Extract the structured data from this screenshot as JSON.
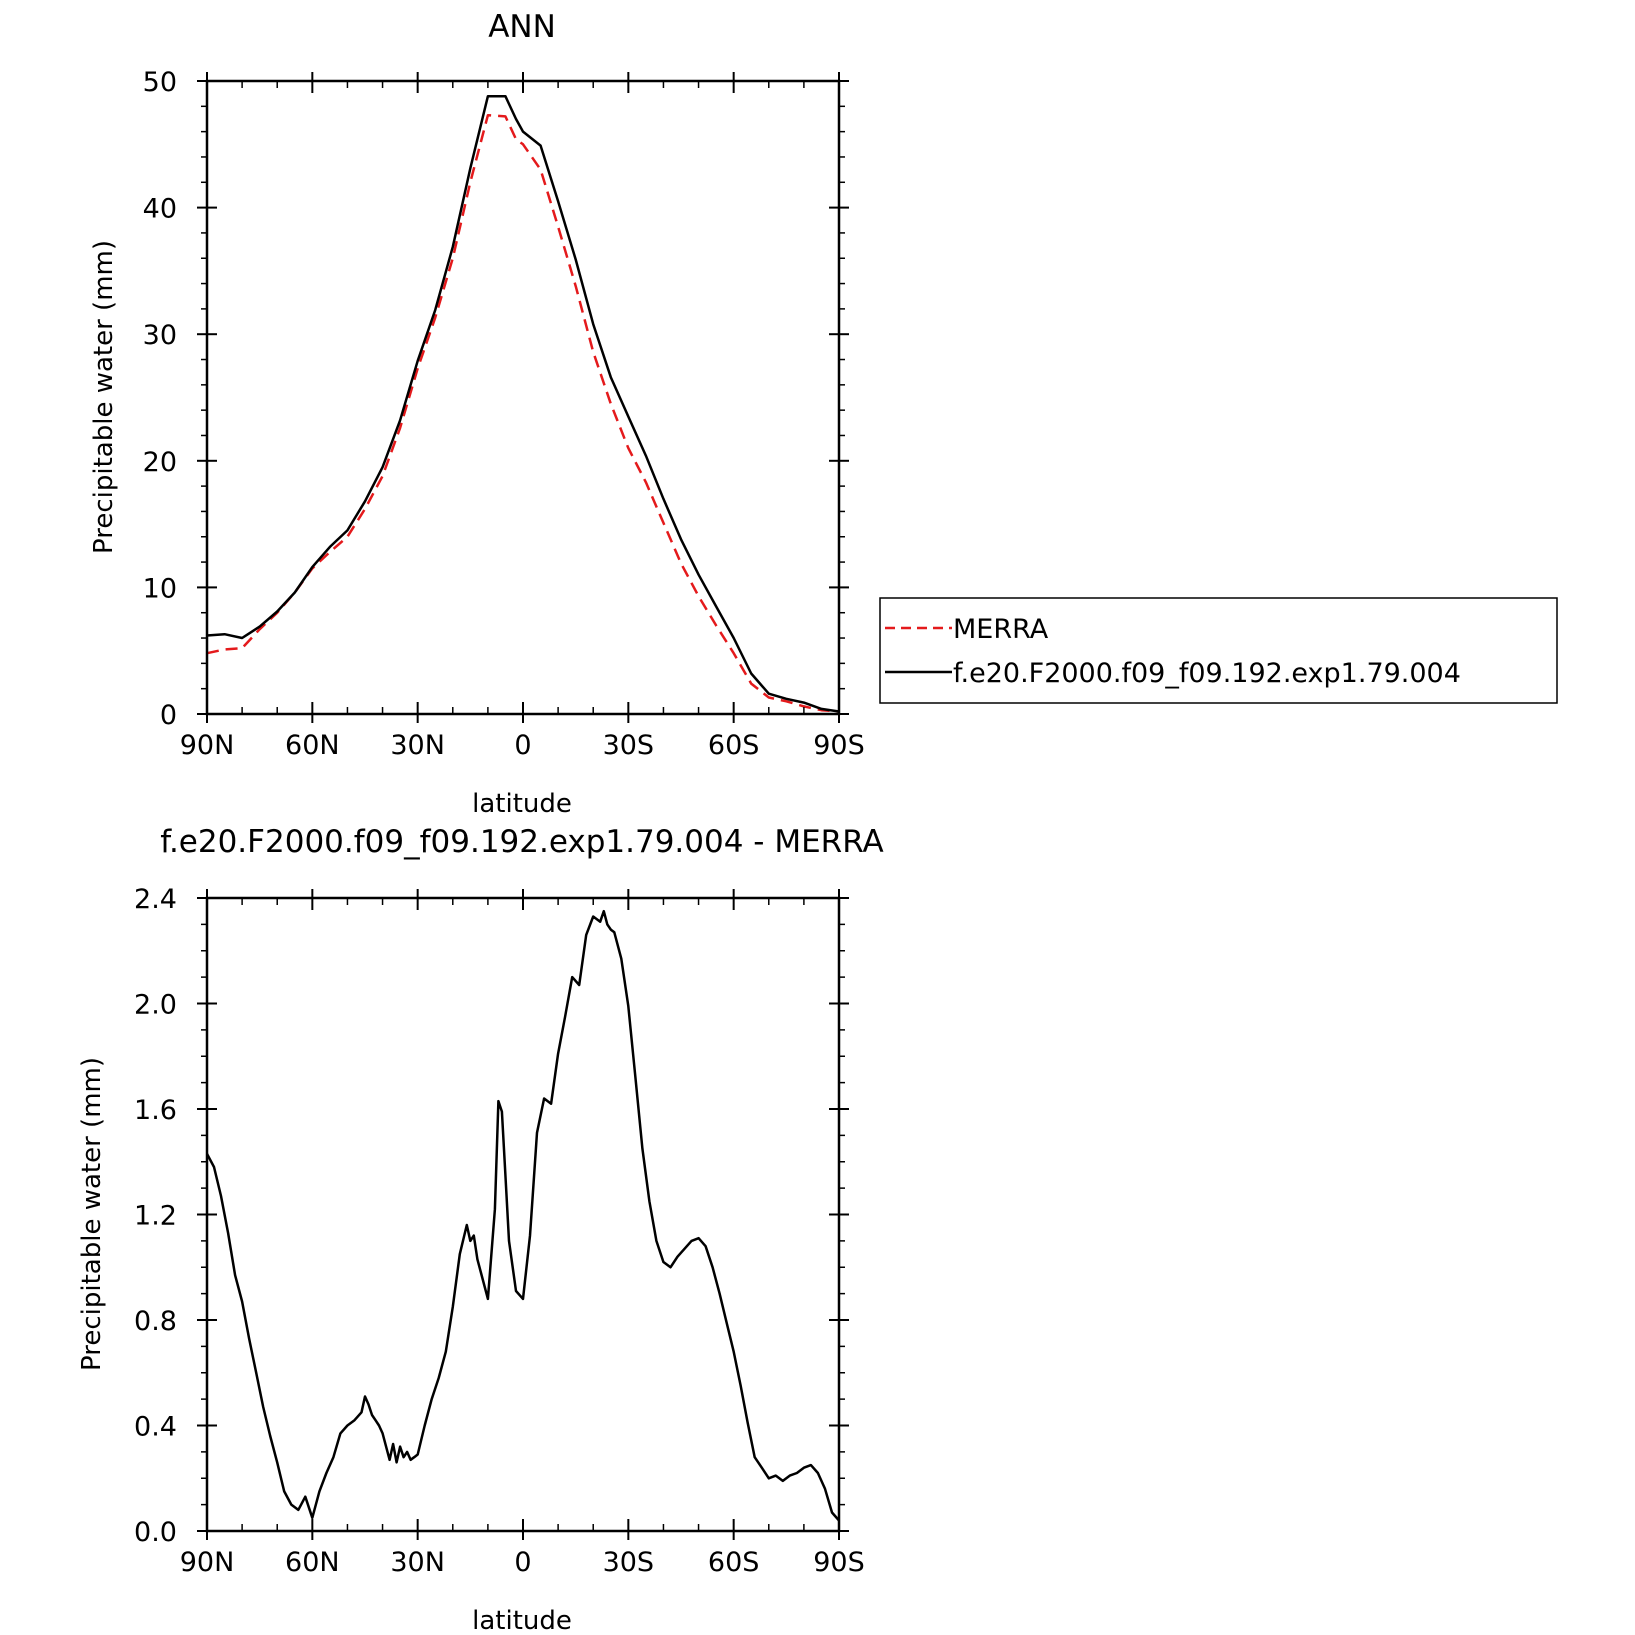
{
  "chart_data": [
    {
      "type": "line",
      "title": "ANN",
      "xlabel": "latitude",
      "ylabel": "Precipitable water (mm)",
      "xlim": [
        90,
        -90
      ],
      "ylim": [
        0,
        50
      ],
      "x_tick_values": [
        90,
        60,
        30,
        0,
        -30,
        -60,
        -90
      ],
      "x_tick_labels": [
        "90N",
        "60N",
        "30N",
        "0",
        "30S",
        "60S",
        "90S"
      ],
      "y_tick_values": [
        0,
        10,
        20,
        30,
        40,
        50
      ],
      "y_tick_labels": [
        "0",
        "10",
        "20",
        "30",
        "40",
        "50"
      ],
      "grid": false,
      "legend_placement": "right",
      "series": [
        {
          "name": "MERRA",
          "color": "#e41a1c",
          "dash": "dashed",
          "x": [
            90,
            85,
            80,
            75,
            70,
            65,
            60,
            55,
            50,
            45,
            40,
            35,
            30,
            25,
            20,
            15,
            10,
            5,
            2,
            0,
            -5,
            -10,
            -15,
            -20,
            -25,
            -30,
            -35,
            -40,
            -45,
            -50,
            -55,
            -60,
            -65,
            -70,
            -75,
            -80,
            -85,
            -90
          ],
          "y": [
            4.8,
            5.1,
            5.2,
            6.7,
            8.0,
            9.6,
            11.5,
            12.8,
            14.0,
            16.2,
            18.8,
            22.6,
            27.3,
            31.3,
            36.0,
            42.0,
            47.3,
            47.2,
            45.4,
            45.0,
            43.0,
            38.5,
            33.8,
            28.6,
            24.5,
            21.0,
            18.3,
            15.1,
            11.9,
            9.3,
            7.0,
            4.8,
            2.4,
            1.3,
            1.0,
            0.6,
            0.3,
            0.2
          ]
        },
        {
          "name": "f.e20.F2000.f09_f09.192.exp1.79.004",
          "color": "#000000",
          "dash": "solid",
          "x": [
            90,
            85,
            80,
            75,
            70,
            65,
            60,
            55,
            50,
            45,
            40,
            35,
            30,
            25,
            20,
            15,
            10,
            5,
            2,
            0,
            -5,
            -10,
            -15,
            -20,
            -25,
            -30,
            -35,
            -40,
            -45,
            -50,
            -55,
            -60,
            -65,
            -70,
            -75,
            -80,
            -85,
            -90
          ],
          "y": [
            6.2,
            6.3,
            6.0,
            6.9,
            8.1,
            9.6,
            11.6,
            13.2,
            14.5,
            16.8,
            19.5,
            23.2,
            27.9,
            31.9,
            36.9,
            43.1,
            48.8,
            48.8,
            47.0,
            46.0,
            44.9,
            40.5,
            35.9,
            30.8,
            26.6,
            23.5,
            20.4,
            17.0,
            13.8,
            11.0,
            8.5,
            6.0,
            3.2,
            1.6,
            1.2,
            0.9,
            0.4,
            0.2
          ]
        }
      ]
    },
    {
      "type": "line",
      "title": "f.e20.F2000.f09_f09.192.exp1.79.004 - MERRA",
      "xlabel": "latitude",
      "ylabel": "Precipitable water (mm)",
      "xlim": [
        90,
        -90
      ],
      "ylim": [
        0,
        2.4
      ],
      "x_tick_values": [
        90,
        60,
        30,
        0,
        -30,
        -60,
        -90
      ],
      "x_tick_labels": [
        "90N",
        "60N",
        "30N",
        "0",
        "30S",
        "60S",
        "90S"
      ],
      "y_tick_values": [
        0,
        0.4,
        0.8,
        1.2,
        1.6,
        2.0,
        2.4
      ],
      "y_tick_labels": [
        "0.0",
        "0.4",
        "0.8",
        "1.2",
        "1.6",
        "2.0",
        "2.4"
      ],
      "grid": false,
      "series": [
        {
          "color": "#000000",
          "x": [
            90,
            88,
            86,
            84,
            82,
            80,
            78,
            76,
            74,
            72,
            70,
            68,
            66,
            64,
            62,
            60,
            58,
            56,
            54,
            52,
            50,
            48,
            46,
            45,
            44,
            43,
            42,
            41,
            40,
            38,
            37,
            36,
            35,
            34,
            33,
            32,
            31,
            30,
            28,
            26,
            24,
            22,
            20,
            18,
            16,
            15,
            14,
            13,
            12,
            10,
            8,
            7,
            6,
            5,
            4,
            2,
            0,
            -2,
            -4,
            -6,
            -8,
            -10,
            -12,
            -14,
            -16,
            -18,
            -20,
            -22,
            -23,
            -24,
            -25,
            -26,
            -28,
            -30,
            -32,
            -34,
            -36,
            -38,
            -40,
            -42,
            -44,
            -46,
            -48,
            -50,
            -52,
            -54,
            -56,
            -58,
            -60,
            -62,
            -64,
            -66,
            -68,
            -70,
            -72,
            -74,
            -76,
            -78,
            -80,
            -82,
            -84,
            -86,
            -88,
            -90
          ],
          "y": [
            1.43,
            1.38,
            1.27,
            1.13,
            0.97,
            0.87,
            0.73,
            0.6,
            0.47,
            0.36,
            0.26,
            0.15,
            0.1,
            0.08,
            0.13,
            0.05,
            0.15,
            0.22,
            0.28,
            0.37,
            0.4,
            0.42,
            0.45,
            0.51,
            0.48,
            0.44,
            0.42,
            0.4,
            0.37,
            0.27,
            0.33,
            0.26,
            0.32,
            0.28,
            0.3,
            0.27,
            0.28,
            0.29,
            0.4,
            0.5,
            0.58,
            0.68,
            0.85,
            1.05,
            1.16,
            1.1,
            1.12,
            1.03,
            0.98,
            0.88,
            1.22,
            1.63,
            1.59,
            1.35,
            1.1,
            0.91,
            0.88,
            1.12,
            1.51,
            1.64,
            1.62,
            1.81,
            1.95,
            2.1,
            2.07,
            2.26,
            2.33,
            2.31,
            2.35,
            2.3,
            2.28,
            2.27,
            2.17,
            1.99,
            1.72,
            1.45,
            1.25,
            1.1,
            1.02,
            1.0,
            1.04,
            1.07,
            1.1,
            1.11,
            1.08,
            1.0,
            0.9,
            0.79,
            0.68,
            0.55,
            0.41,
            0.28,
            0.24,
            0.2,
            0.21,
            0.19,
            0.21,
            0.22,
            0.24,
            0.25,
            0.22,
            0.16,
            0.07,
            0.04
          ]
        }
      ]
    }
  ]
}
